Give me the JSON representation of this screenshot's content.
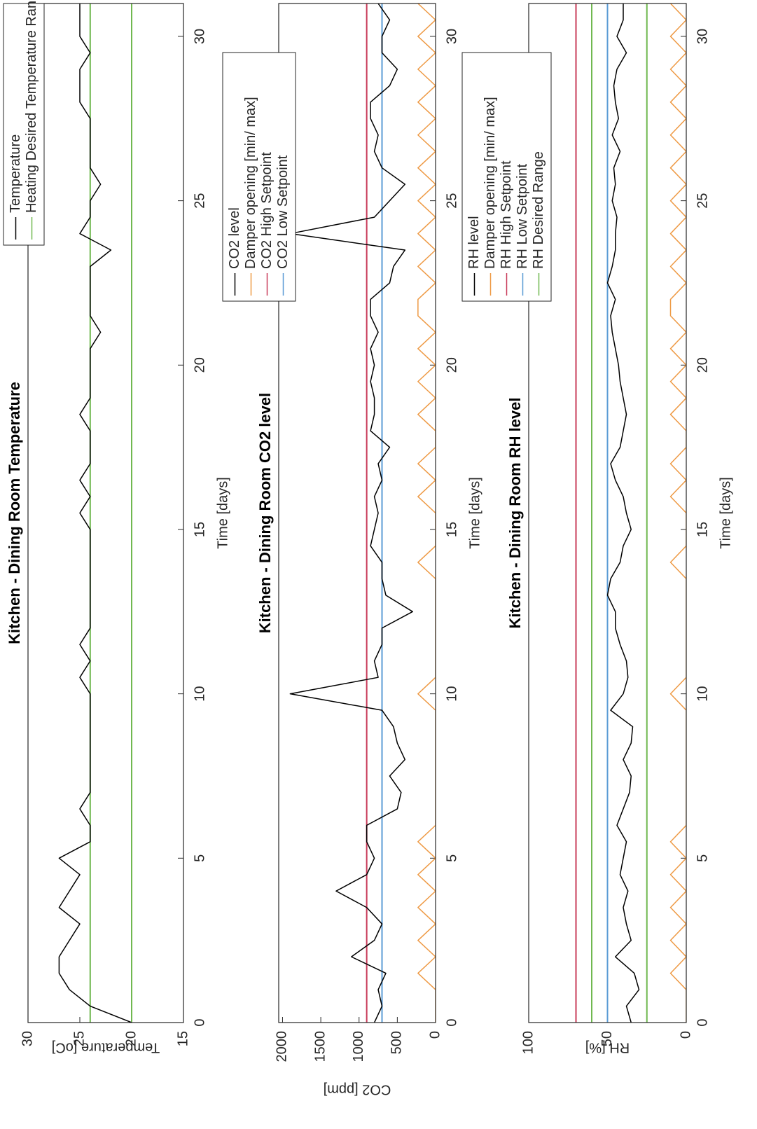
{
  "chart_data": [
    {
      "type": "line",
      "title": "Kitchen - Dining Room Temperature",
      "xlabel": "Time [days]",
      "ylabel": "Temperature [oC]",
      "xlim": [
        0,
        31
      ],
      "xticks": [
        0,
        5,
        10,
        15,
        20,
        25,
        30
      ],
      "ylim": [
        15,
        30
      ],
      "yticks": [
        15,
        20,
        25,
        30
      ],
      "legend": "upper right",
      "x": [
        0,
        0.5,
        1,
        1.5,
        2,
        2.5,
        3,
        3.5,
        4,
        4.5,
        5,
        5.5,
        6,
        6.5,
        7,
        7.5,
        8,
        8.5,
        9,
        9.5,
        10,
        10.5,
        11,
        11.5,
        12,
        12.5,
        13,
        13.5,
        14,
        14.5,
        15,
        15.5,
        16,
        16.5,
        17,
        17.5,
        18,
        18.5,
        19,
        19.5,
        20,
        20.5,
        21,
        21.5,
        22,
        22.5,
        23,
        23.5,
        24,
        24.5,
        25,
        25.5,
        26,
        26.5,
        27,
        27.5,
        28,
        28.5,
        29,
        29.5,
        30,
        30.5,
        31
      ],
      "series": [
        {
          "name": "Temperature",
          "color": "#000000",
          "values": [
            20,
            24,
            26,
            27,
            27,
            26,
            25,
            27,
            26,
            25,
            27,
            24,
            24,
            25,
            24,
            24,
            24,
            24,
            24,
            24,
            24,
            25,
            24,
            25,
            24,
            24,
            24,
            24,
            24,
            24,
            24,
            25,
            24,
            25,
            24,
            24,
            24,
            25,
            24,
            24,
            24,
            24,
            23,
            24,
            24,
            24,
            24,
            22,
            25,
            24,
            24,
            23,
            24,
            24,
            24,
            24,
            25,
            25,
            25,
            24,
            25,
            25,
            25
          ]
        }
      ],
      "hlines": [
        {
          "name": "Heating Desired Temperature Range",
          "color": "#70b850",
          "values": [
            20,
            24
          ]
        }
      ]
    },
    {
      "type": "line",
      "title": "Kitchen - Dining Room CO2 level",
      "xlabel": "Time [days]",
      "ylabel": "CO2 [ppm]",
      "xlim": [
        0,
        31
      ],
      "xticks": [
        0,
        5,
        10,
        15,
        20,
        25,
        30
      ],
      "ylim": [
        0,
        2050
      ],
      "yticks": [
        0,
        500,
        1000,
        1500,
        2000
      ],
      "legend": "upper right",
      "x": [
        0,
        0.5,
        1,
        1.5,
        2,
        2.5,
        3,
        3.5,
        4,
        4.5,
        5,
        5.5,
        6,
        6.5,
        7,
        7.5,
        8,
        8.5,
        9,
        9.5,
        10,
        10.5,
        11,
        11.5,
        12,
        12.5,
        13,
        13.5,
        14,
        14.5,
        15,
        15.5,
        16,
        16.5,
        17,
        17.5,
        18,
        18.5,
        19,
        19.5,
        20,
        20.5,
        21,
        21.5,
        22,
        22.5,
        23,
        23.5,
        24,
        24.5,
        25,
        25.5,
        26,
        26.5,
        27,
        27.5,
        28,
        28.5,
        29,
        29.5,
        30,
        30.5,
        31
      ],
      "series": [
        {
          "name": "CO2 level",
          "color": "#000000",
          "values": [
            800,
            700,
            750,
            650,
            1100,
            800,
            700,
            900,
            1300,
            900,
            800,
            900,
            900,
            500,
            450,
            600,
            400,
            500,
            550,
            700,
            1900,
            750,
            800,
            700,
            700,
            300,
            650,
            700,
            700,
            850,
            800,
            750,
            800,
            700,
            750,
            600,
            850,
            800,
            800,
            850,
            800,
            850,
            750,
            850,
            850,
            600,
            550,
            400,
            1900,
            800,
            600,
            400,
            700,
            800,
            750,
            850,
            850,
            600,
            500,
            700,
            700,
            600,
            750
          ]
        },
        {
          "name": "Damper opening [min/ max]",
          "color": "#ee9a45",
          "values": [
            0,
            0,
            0,
            230,
            0,
            230,
            0,
            230,
            0,
            230,
            0,
            230,
            0,
            0,
            0,
            0,
            0,
            0,
            0,
            0,
            230,
            0,
            0,
            0,
            0,
            0,
            0,
            0,
            230,
            0,
            0,
            0,
            230,
            0,
            230,
            0,
            0,
            230,
            0,
            230,
            0,
            230,
            0,
            230,
            230,
            0,
            230,
            0,
            230,
            0,
            230,
            0,
            230,
            0,
            230,
            0,
            230,
            0,
            230,
            0,
            230,
            0,
            230
          ]
        }
      ],
      "hlines": [
        {
          "name": "CO2 High Setpoint",
          "color": "#c83c5a",
          "values": [
            900
          ]
        },
        {
          "name": "CO2 Low Setpoint",
          "color": "#5b9bd5",
          "values": [
            700
          ]
        }
      ]
    },
    {
      "type": "line",
      "title": "Kitchen - Dining Room RH level",
      "xlabel": "Time [days]",
      "ylabel": "RH [%]",
      "xlim": [
        0,
        31
      ],
      "xticks": [
        0,
        5,
        10,
        15,
        20,
        25,
        30
      ],
      "ylim": [
        0,
        100
      ],
      "yticks": [
        0,
        50,
        100
      ],
      "legend": "upper right",
      "x": [
        0,
        0.5,
        1,
        1.5,
        2,
        2.5,
        3,
        3.5,
        4,
        4.5,
        5,
        5.5,
        6,
        6.5,
        7,
        7.5,
        8,
        8.5,
        9,
        9.5,
        10,
        10.5,
        11,
        11.5,
        12,
        12.5,
        13,
        13.5,
        14,
        14.5,
        15,
        15.5,
        16,
        16.5,
        17,
        17.5,
        18,
        18.5,
        19,
        19.5,
        20,
        20.5,
        21,
        21.5,
        22,
        22.5,
        23,
        23.5,
        24,
        24.5,
        25,
        25.5,
        26,
        26.5,
        27,
        27.5,
        28,
        28.5,
        29,
        29.5,
        30,
        30.5,
        31
      ],
      "series": [
        {
          "name": "RH level",
          "color": "#000000",
          "values": [
            35,
            38,
            30,
            33,
            45,
            35,
            38,
            40,
            37,
            42,
            40,
            38,
            44,
            40,
            36,
            35,
            40,
            35,
            34,
            48,
            40,
            37,
            38,
            42,
            45,
            45,
            50,
            48,
            42,
            40,
            35,
            38,
            40,
            45,
            48,
            42,
            40,
            38,
            40,
            42,
            43,
            45,
            47,
            48,
            45,
            50,
            47,
            45,
            45,
            44,
            47,
            45,
            46,
            42,
            47,
            43,
            45,
            46,
            44,
            38,
            44,
            40,
            40
          ]
        },
        {
          "name": "Damper opening [min/ max]",
          "color": "#ee9a45",
          "values": [
            0,
            0,
            0,
            10,
            0,
            10,
            0,
            10,
            0,
            10,
            0,
            10,
            0,
            0,
            0,
            0,
            0,
            0,
            0,
            0,
            10,
            0,
            0,
            0,
            0,
            0,
            0,
            0,
            10,
            0,
            0,
            0,
            10,
            0,
            10,
            0,
            0,
            10,
            0,
            10,
            0,
            10,
            0,
            10,
            10,
            0,
            10,
            0,
            10,
            0,
            10,
            0,
            10,
            0,
            10,
            0,
            10,
            0,
            10,
            0,
            10,
            0,
            10
          ]
        }
      ],
      "hlines": [
        {
          "name": "RH High Setpoint",
          "color": "#c83c5a",
          "values": [
            70
          ]
        },
        {
          "name": "RH Low Setpoint",
          "color": "#5b9bd5",
          "values": [
            50
          ]
        },
        {
          "name": "RH Desired Range",
          "color": "#70b850",
          "values": [
            25,
            60
          ]
        }
      ]
    }
  ]
}
